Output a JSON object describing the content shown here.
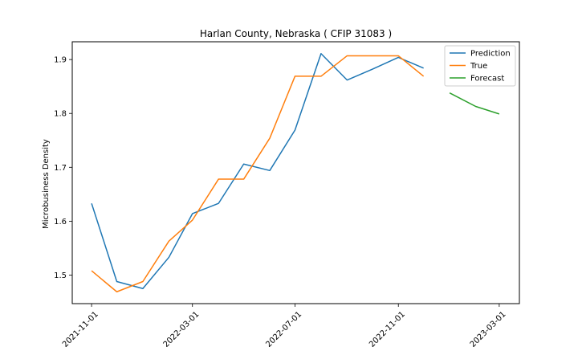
{
  "chart_data": {
    "type": "line",
    "title": "Harlan County, Nebraska ( CFIP 31083 )",
    "xlabel": "",
    "ylabel": "Microbusiness Density",
    "x_ticks": [
      "2021-11-01",
      "2022-03-01",
      "2022-07-01",
      "2022-11-01",
      "2023-03-01"
    ],
    "y_ticks": [
      "1.5",
      "1.6",
      "1.7",
      "1.8",
      "1.9"
    ],
    "xlim": [
      "2021-10-09",
      "2023-03-25"
    ],
    "ylim": [
      1.447,
      1.933
    ],
    "grid": false,
    "legend_position": "top-right",
    "series": [
      {
        "name": "Prediction",
        "color": "#1f77b4",
        "x": [
          "2021-11-01",
          "2021-12-01",
          "2022-01-01",
          "2022-02-01",
          "2022-03-01",
          "2022-04-01",
          "2022-05-01",
          "2022-06-01",
          "2022-07-01",
          "2022-08-01",
          "2022-09-01",
          "2022-10-01",
          "2022-11-01",
          "2022-12-01"
        ],
        "values": [
          1.633,
          1.488,
          1.475,
          1.533,
          1.614,
          1.633,
          1.706,
          1.694,
          1.769,
          1.911,
          1.862,
          1.882,
          1.904,
          1.884
        ]
      },
      {
        "name": "True",
        "color": "#ff7f0e",
        "x": [
          "2021-11-01",
          "2021-12-01",
          "2022-01-01",
          "2022-02-01",
          "2022-03-01",
          "2022-04-01",
          "2022-05-01",
          "2022-06-01",
          "2022-07-01",
          "2022-08-01",
          "2022-09-01",
          "2022-10-01",
          "2022-11-01",
          "2022-12-01"
        ],
        "values": [
          1.508,
          1.469,
          1.488,
          1.563,
          1.602,
          1.678,
          1.678,
          1.754,
          1.869,
          1.869,
          1.907,
          1.907,
          1.907,
          1.869
        ]
      },
      {
        "name": "Forecast",
        "color": "#2ca02c",
        "x": [
          "2023-01-01",
          "2023-02-01",
          "2023-03-01"
        ],
        "values": [
          1.838,
          1.813,
          1.799
        ]
      }
    ]
  }
}
